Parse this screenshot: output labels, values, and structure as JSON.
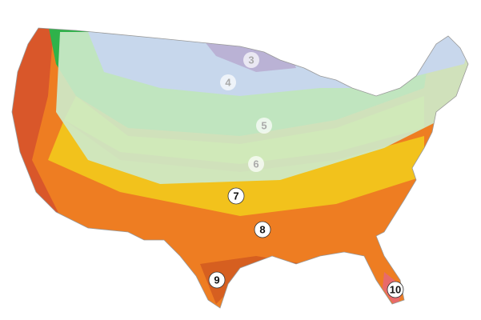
{
  "zones": [
    {
      "label": "3"
    },
    {
      "label": "4"
    },
    {
      "label": "5"
    },
    {
      "label": "6"
    },
    {
      "label": "7"
    },
    {
      "label": "8"
    },
    {
      "label": "9"
    },
    {
      "label": "10"
    }
  ]
}
